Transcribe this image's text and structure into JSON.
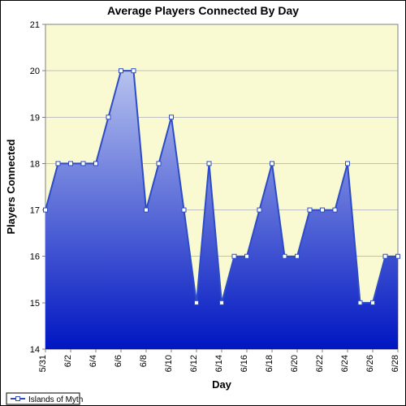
{
  "chart": {
    "type": "area",
    "title": "Average Players Connected By Day",
    "title_fontsize": 14,
    "xlabel": "Day",
    "ylabel": "Players Connected",
    "label_fontsize": 13,
    "background_color": "#ffffff",
    "plot_bg_color": "#f9f9d2",
    "grid_color": "#c0c0c0",
    "border_color": "#808080",
    "series_name": "Islands of Myth",
    "line_color": "#2d4cc6",
    "line_width": 2,
    "area_gradient_top": "#b6c2ee",
    "area_gradient_bottom": "#0016c2",
    "marker_style": "square",
    "marker_size": 5,
    "marker_fill": "#ffffff",
    "marker_stroke": "#2d4cc6",
    "ylim": [
      14,
      21
    ],
    "ytick_step": 1,
    "x_categories": [
      "5/31",
      "6/1",
      "6/2",
      "6/3",
      "6/4",
      "6/5",
      "6/6",
      "6/7",
      "6/8",
      "6/9",
      "6/10",
      "6/11",
      "6/12",
      "6/13",
      "6/14",
      "6/15",
      "6/16",
      "6/17",
      "6/18",
      "6/19",
      "6/20",
      "6/21",
      "6/22",
      "6/23",
      "6/24",
      "6/25",
      "6/26",
      "6/27",
      "6/28"
    ],
    "x_tick_labels": [
      "5/31",
      "6/2",
      "6/4",
      "6/6",
      "6/8",
      "6/10",
      "6/12",
      "6/14",
      "6/16",
      "6/18",
      "6/20",
      "6/22",
      "6/24",
      "6/26",
      "6/28"
    ],
    "values": [
      17,
      18,
      18,
      18,
      18,
      19,
      20,
      20,
      17,
      18,
      19,
      17,
      15,
      18,
      15,
      16,
      16,
      17,
      18,
      16,
      16,
      17,
      17,
      17,
      18,
      15,
      15,
      16,
      16
    ],
    "tick_fontsize": 11,
    "legend_fontsize": 10
  }
}
